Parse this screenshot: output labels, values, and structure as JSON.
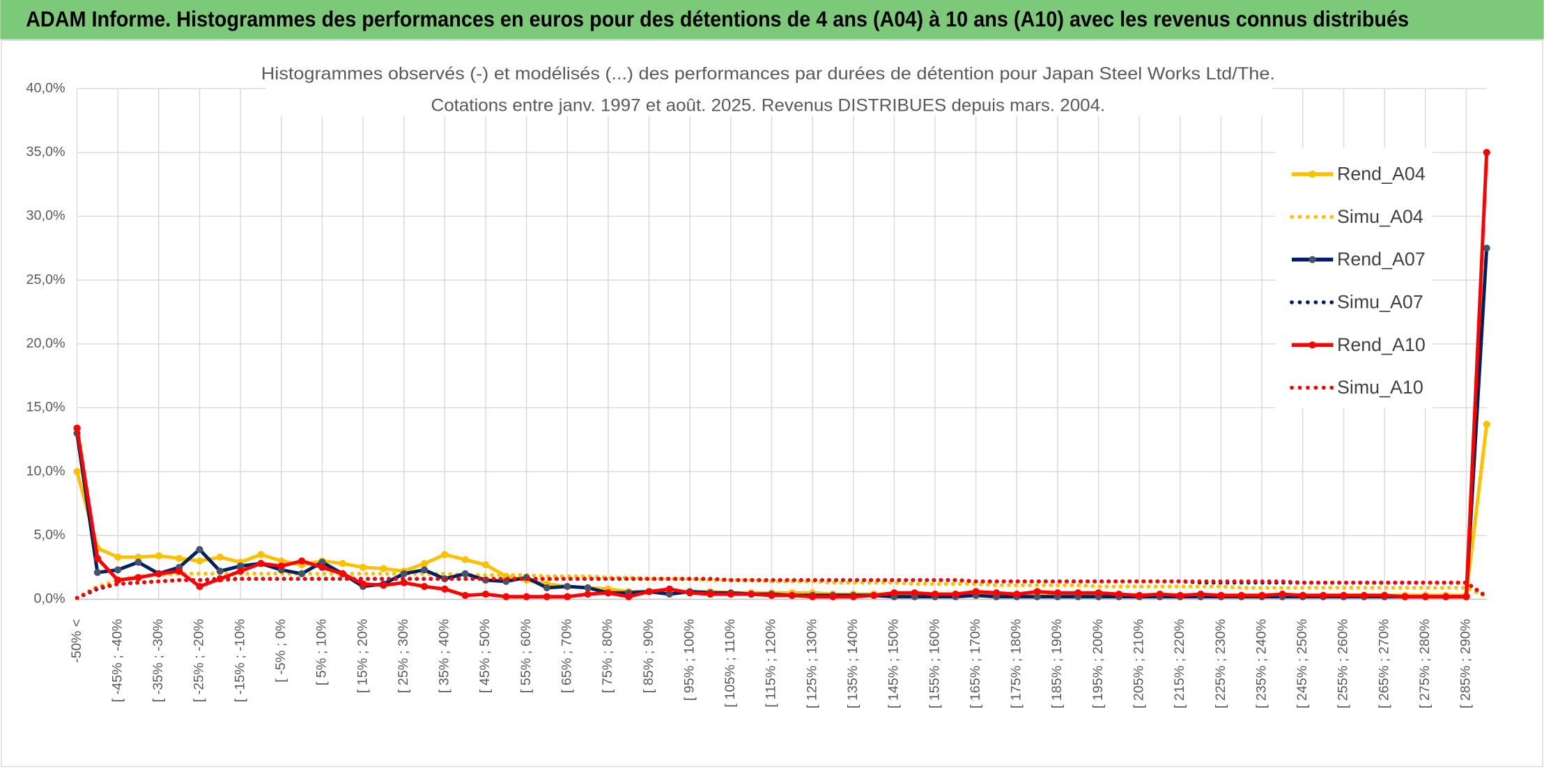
{
  "header": {
    "title": "ADAM Informe. Histogrammes des performances en euros pour des détentions de 4 ans (A04) à 10 ans (A10) avec les revenus connus distribués"
  },
  "chart_data": {
    "type": "line",
    "title": "Histogrammes observés (-) et modélisés (...) des performances par durées de détention pour Japan Steel Works Ltd/The.",
    "subtitle": "Cotations entre janv. 1997 et août. 2025. Revenus DISTRIBUES depuis mars. 2004.",
    "categories": [
      "-50% <",
      null,
      "[ -45% ; -40%",
      null,
      "[ -35% ; -30%",
      null,
      "[ -25% ; -20%",
      null,
      "[ -15% ; -10%",
      null,
      "[ -5% ; 0%",
      null,
      "[ 5% ; 10%",
      null,
      "[ 15% ; 20%",
      null,
      "[ 25% ; 30%",
      null,
      "[ 35% ; 40%",
      null,
      "[ 45% ; 50%",
      null,
      "[ 55% ; 60%",
      null,
      "[ 65% ; 70%",
      null,
      "[ 75% ; 80%",
      null,
      "[ 85% ; 90%",
      null,
      "[ 95% ; 100%",
      null,
      "[ 105% ; 110%",
      null,
      "[ 115% ; 120%",
      null,
      "[ 125% ; 130%",
      null,
      "[ 135% ; 140%",
      null,
      "[ 145% ; 150%",
      null,
      "[ 155% ; 160%",
      null,
      "[ 165% ; 170%",
      null,
      "[ 175% ; 180%",
      null,
      "[ 185% ; 190%",
      null,
      "[ 195% ; 200%",
      null,
      "[ 205% ; 210%",
      null,
      "[ 215% ; 220%",
      null,
      "[ 225% ; 230%",
      null,
      "[ 235% ; 240%",
      null,
      "[ 245% ; 250%",
      null,
      "[ 255% ; 260%",
      null,
      "[ 265% ; 270%",
      null,
      "[ 275% ; 280%",
      null,
      "[ 285% ; 290%",
      null
    ],
    "ylim": [
      0,
      40
    ],
    "yticks": [
      {
        "value": 0,
        "label": "0,0%"
      },
      {
        "value": 5,
        "label": "5,0%"
      },
      {
        "value": 10,
        "label": "10,0%"
      },
      {
        "value": 15,
        "label": "15,0%"
      },
      {
        "value": 20,
        "label": "20,0%"
      },
      {
        "value": 25,
        "label": "25,0%"
      },
      {
        "value": 30,
        "label": "30,0%"
      },
      {
        "value": 35,
        "label": "35,0%"
      },
      {
        "value": 40,
        "label": "40,0%"
      }
    ],
    "grid": true,
    "legend": "right",
    "series": [
      {
        "name": "Rend_A04",
        "color": "#FFC000",
        "style": "solid",
        "values": [
          10.0,
          4.0,
          3.3,
          3.3,
          3.4,
          3.2,
          3.0,
          3.3,
          2.9,
          3.5,
          3.0,
          2.7,
          3.0,
          2.8,
          2.5,
          2.4,
          2.2,
          2.8,
          3.5,
          3.1,
          2.7,
          1.8,
          1.5,
          1.2,
          1.0,
          0.9,
          0.8,
          0.6,
          0.6,
          0.6,
          0.6,
          0.6,
          0.5,
          0.5,
          0.5,
          0.5,
          0.5,
          0.4,
          0.4,
          0.4,
          0.4,
          0.4,
          0.4,
          0.4,
          0.4,
          0.4,
          0.3,
          0.3,
          0.3,
          0.3,
          0.3,
          0.3,
          0.3,
          0.3,
          0.3,
          0.3,
          0.3,
          0.3,
          0.3,
          0.3,
          0.3,
          0.3,
          0.3,
          0.3,
          0.3,
          0.3,
          0.3,
          0.3,
          0.3,
          13.7
        ]
      },
      {
        "name": "Simu_A04",
        "color": "#FFC000",
        "style": "dotted",
        "values": [
          0.1,
          1.0,
          1.5,
          1.8,
          1.9,
          2.0,
          2.0,
          2.0,
          2.0,
          2.0,
          2.0,
          2.0,
          2.0,
          2.0,
          2.0,
          2.0,
          2.0,
          2.0,
          2.0,
          1.9,
          1.9,
          1.9,
          1.9,
          1.8,
          1.8,
          1.8,
          1.7,
          1.7,
          1.6,
          1.6,
          1.6,
          1.5,
          1.5,
          1.5,
          1.4,
          1.4,
          1.4,
          1.3,
          1.3,
          1.3,
          1.3,
          1.2,
          1.2,
          1.2,
          1.2,
          1.1,
          1.1,
          1.1,
          1.1,
          1.1,
          1.0,
          1.0,
          1.0,
          1.0,
          1.0,
          1.0,
          1.0,
          0.9,
          0.9,
          0.9,
          0.9,
          0.9,
          0.9,
          0.9,
          0.9,
          0.9,
          0.9,
          0.9,
          0.9,
          0.2
        ]
      },
      {
        "name": "Rend_A07",
        "color": "#002060",
        "marker": "#44546A",
        "style": "solid",
        "values": [
          13.0,
          2.1,
          2.3,
          2.9,
          2.0,
          2.5,
          3.9,
          2.2,
          2.6,
          2.8,
          2.3,
          2.0,
          2.9,
          2.0,
          1.0,
          1.2,
          2.0,
          2.3,
          1.6,
          2.0,
          1.5,
          1.4,
          1.7,
          0.9,
          1.0,
          0.9,
          0.5,
          0.5,
          0.6,
          0.4,
          0.6,
          0.5,
          0.5,
          0.4,
          0.4,
          0.3,
          0.3,
          0.3,
          0.3,
          0.3,
          0.2,
          0.2,
          0.2,
          0.2,
          0.3,
          0.2,
          0.2,
          0.2,
          0.2,
          0.2,
          0.2,
          0.2,
          0.2,
          0.2,
          0.2,
          0.2,
          0.2,
          0.2,
          0.2,
          0.2,
          0.2,
          0.2,
          0.2,
          0.2,
          0.2,
          0.2,
          0.2,
          0.2,
          0.2,
          27.5
        ]
      },
      {
        "name": "Simu_A07",
        "color": "#002060",
        "style": "dotted",
        "values": [
          0.1,
          0.8,
          1.2,
          1.3,
          1.4,
          1.5,
          1.5,
          1.6,
          1.6,
          1.6,
          1.6,
          1.6,
          1.6,
          1.6,
          1.6,
          1.6,
          1.6,
          1.6,
          1.6,
          1.6,
          1.6,
          1.6,
          1.6,
          1.6,
          1.6,
          1.6,
          1.6,
          1.6,
          1.6,
          1.6,
          1.6,
          1.6,
          1.5,
          1.5,
          1.5,
          1.5,
          1.5,
          1.5,
          1.5,
          1.5,
          1.5,
          1.5,
          1.5,
          1.5,
          1.4,
          1.4,
          1.4,
          1.4,
          1.4,
          1.4,
          1.4,
          1.4,
          1.4,
          1.4,
          1.4,
          1.3,
          1.3,
          1.3,
          1.3,
          1.3,
          1.3,
          1.3,
          1.3,
          1.3,
          1.3,
          1.3,
          1.3,
          1.3,
          1.3,
          0.2
        ]
      },
      {
        "name": "Rend_A10",
        "color": "#FF0000",
        "style": "solid",
        "values": [
          13.4,
          3.2,
          1.5,
          1.7,
          2.0,
          2.2,
          1.0,
          1.6,
          2.2,
          2.8,
          2.6,
          3.0,
          2.5,
          2.0,
          1.2,
          1.1,
          1.3,
          1.0,
          0.8,
          0.3,
          0.4,
          0.2,
          0.2,
          0.2,
          0.2,
          0.4,
          0.5,
          0.2,
          0.6,
          0.8,
          0.5,
          0.4,
          0.4,
          0.4,
          0.3,
          0.3,
          0.2,
          0.2,
          0.2,
          0.3,
          0.5,
          0.5,
          0.4,
          0.4,
          0.6,
          0.5,
          0.4,
          0.6,
          0.5,
          0.5,
          0.5,
          0.4,
          0.3,
          0.4,
          0.3,
          0.4,
          0.3,
          0.3,
          0.3,
          0.4,
          0.3,
          0.3,
          0.3,
          0.3,
          0.3,
          0.2,
          0.2,
          0.2,
          0.2,
          35.0
        ]
      },
      {
        "name": "Simu_A10",
        "color": "#FF0000",
        "style": "dotted",
        "values": [
          0.1,
          0.9,
          1.2,
          1.3,
          1.4,
          1.5,
          1.5,
          1.5,
          1.6,
          1.6,
          1.6,
          1.6,
          1.6,
          1.6,
          1.6,
          1.6,
          1.6,
          1.6,
          1.6,
          1.6,
          1.6,
          1.6,
          1.6,
          1.6,
          1.6,
          1.6,
          1.6,
          1.6,
          1.6,
          1.6,
          1.6,
          1.6,
          1.5,
          1.5,
          1.5,
          1.5,
          1.5,
          1.5,
          1.5,
          1.5,
          1.5,
          1.5,
          1.5,
          1.5,
          1.4,
          1.4,
          1.4,
          1.4,
          1.4,
          1.4,
          1.4,
          1.4,
          1.4,
          1.4,
          1.4,
          1.4,
          1.4,
          1.4,
          1.4,
          1.4,
          1.3,
          1.3,
          1.3,
          1.3,
          1.3,
          1.3,
          1.3,
          1.3,
          1.3,
          0.2
        ]
      }
    ]
  }
}
